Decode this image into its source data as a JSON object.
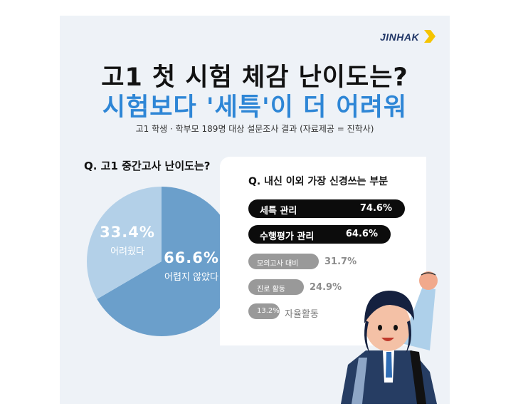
{
  "brand": {
    "logo": "JINHAK"
  },
  "headline": {
    "line1": "고1 첫 시험 체감 난이도는?",
    "line2": "시험보다 '세특'이 더 어려워",
    "subtitle": "고1 학생 · 학부모 189명 대상 설문조사 결과 (자료제공 = 진학사)"
  },
  "colors": {
    "accent_blue": "#2e86d6",
    "pie_dark": "#6b9fcb",
    "pie_light": "#b3d0e8",
    "bar_dark": "#0c0c0c",
    "bar_gray": "#999999",
    "background": "#eef2f7"
  },
  "chart_data": [
    {
      "type": "pie",
      "title": "Q. 고1 중간고사 난이도는?",
      "slices": [
        {
          "label": "어렵지 않았다",
          "value": 66.6,
          "value_label": "66.6%"
        },
        {
          "label": "어려웠다",
          "value": 33.4,
          "value_label": "33.4%"
        }
      ]
    },
    {
      "type": "bar",
      "title": "Q. 내신 이외 가장 신경쓰는 부분",
      "categories": [
        "세특 관리",
        "수행평가 관리",
        "모의고사 대비",
        "진로 활동",
        "자율활동"
      ],
      "values": [
        74.6,
        64.6,
        31.7,
        24.9,
        13.2
      ],
      "value_labels": [
        "74.6%",
        "64.6%",
        "31.7%",
        "24.9%",
        "13.2%"
      ]
    }
  ]
}
